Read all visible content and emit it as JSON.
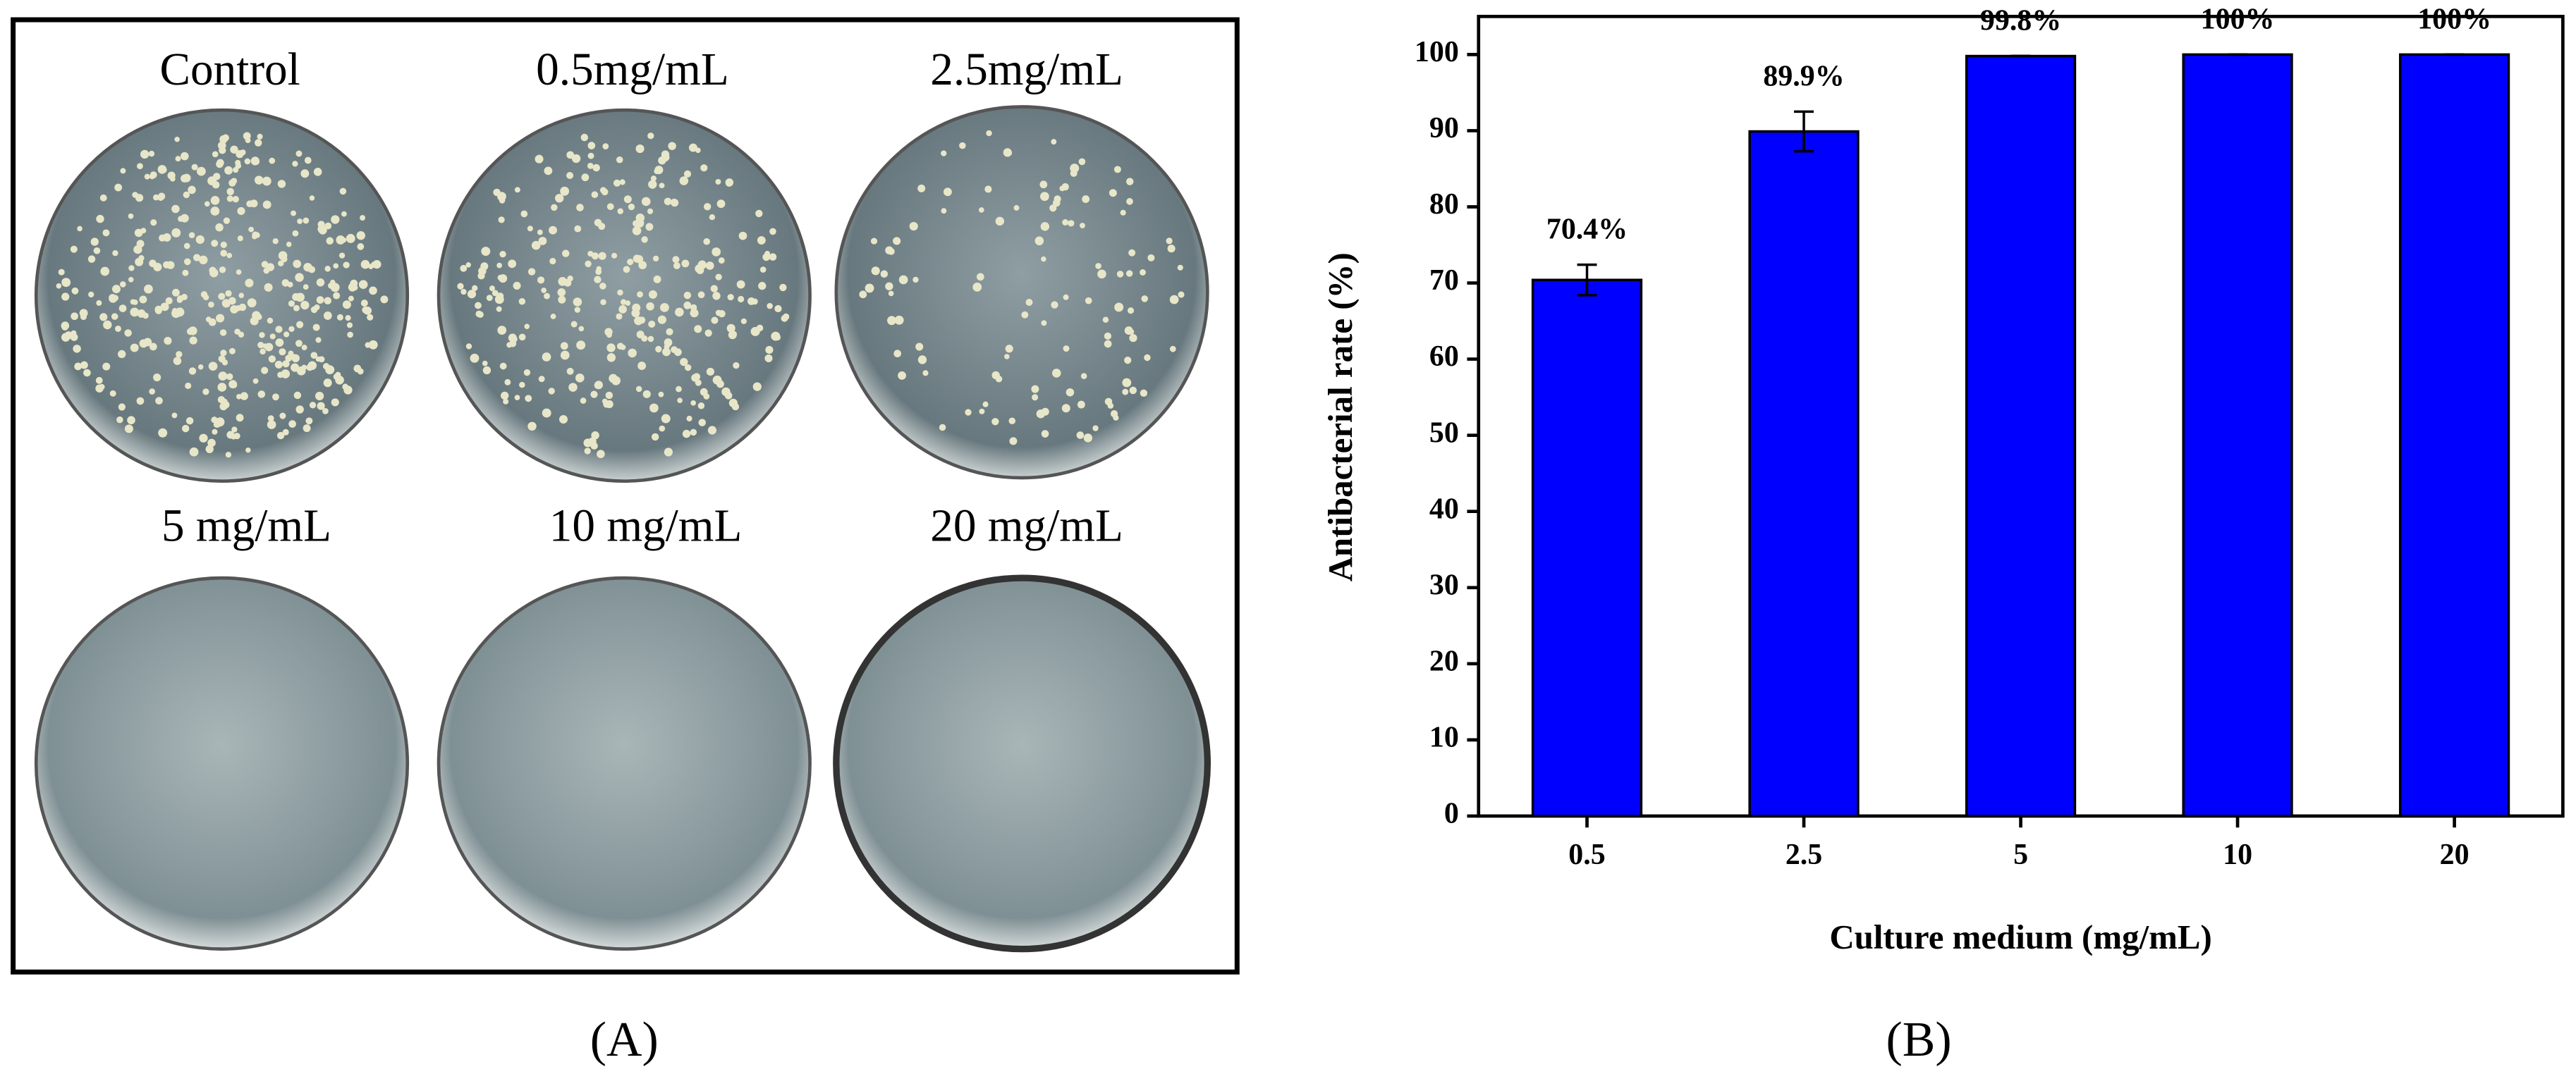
{
  "panel_a": {
    "labels": [
      "Control",
      "0.5mg/mL",
      "2.5mg/mL",
      "5 mg/mL",
      "10 mg/mL",
      "20 mg/mL"
    ],
    "caption": "(A)"
  },
  "panel_b": {
    "caption": "(B)"
  },
  "chart_data": {
    "type": "bar",
    "x_label": "Culture medium (mg/mL)",
    "y_label": "Antibacterial rate (%)",
    "categories": [
      "0.5",
      "2.5",
      "5",
      "10",
      "20"
    ],
    "values": [
      70.4,
      89.9,
      99.8,
      100,
      100
    ],
    "value_labels": [
      "70.4%",
      "89.9%",
      "99.8%",
      "100%",
      "100%"
    ],
    "errors": [
      2,
      2.6,
      0,
      0,
      0
    ],
    "color": "#0000ff",
    "ylim": [
      0,
      105
    ],
    "yticks": [
      0,
      10,
      20,
      30,
      40,
      50,
      60,
      70,
      80,
      90,
      100
    ]
  }
}
